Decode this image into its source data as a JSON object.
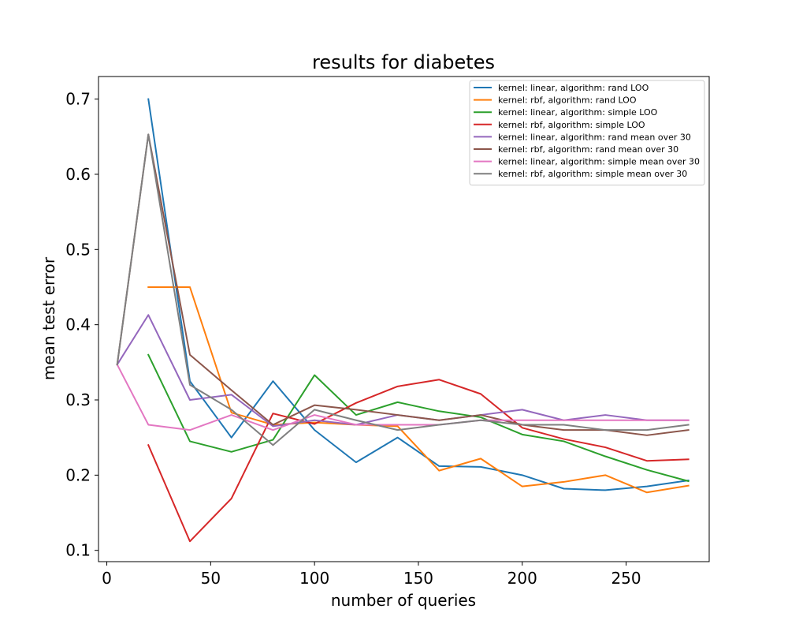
{
  "chart_data": {
    "type": "line",
    "title": "results for diabetes",
    "xlabel": "number of queries",
    "ylabel": "mean test error",
    "xlim": [
      -4,
      290
    ],
    "ylim": [
      0.085,
      0.73
    ],
    "xticks": [
      0,
      50,
      100,
      150,
      200,
      250
    ],
    "yticks": [
      0.1,
      0.2,
      0.3,
      0.4,
      0.5,
      0.6,
      0.7
    ],
    "xtick_labels": [
      "0",
      "50",
      "100",
      "150",
      "200",
      "250"
    ],
    "ytick_labels": [
      "0.1",
      "0.2",
      "0.3",
      "0.4",
      "0.5",
      "0.6",
      "0.7"
    ],
    "grid": false,
    "legend_position": "top-right",
    "series": [
      {
        "name": "kernel: linear, algorithm: rand LOO",
        "color": "#1f77b4",
        "x": [
          20,
          40,
          60,
          80,
          100,
          120,
          140,
          160,
          180,
          200,
          220,
          240,
          260,
          280
        ],
        "y": [
          0.7,
          0.325,
          0.25,
          0.325,
          0.26,
          0.217,
          0.25,
          0.212,
          0.211,
          0.2,
          0.182,
          0.18,
          0.185,
          0.193
        ]
      },
      {
        "name": "kernel: rbf, algorithm: rand LOO",
        "color": "#ff7f0e",
        "x": [
          20,
          40,
          60,
          80,
          100,
          120,
          140,
          160,
          180,
          200,
          220,
          240,
          260,
          280
        ],
        "y": [
          0.45,
          0.45,
          0.283,
          0.267,
          0.27,
          0.267,
          0.265,
          0.206,
          0.222,
          0.185,
          0.191,
          0.2,
          0.177,
          0.186
        ]
      },
      {
        "name": "kernel: linear, algorithm: simple LOO",
        "color": "#2ca02c",
        "x": [
          20,
          40,
          60,
          80,
          100,
          120,
          140,
          160,
          180,
          200,
          220,
          240,
          260,
          280
        ],
        "y": [
          0.36,
          0.245,
          0.231,
          0.247,
          0.333,
          0.28,
          0.297,
          0.285,
          0.277,
          0.254,
          0.245,
          0.225,
          0.207,
          0.192
        ]
      },
      {
        "name": "kernel: rbf, algorithm: simple LOO",
        "color": "#d62728",
        "x": [
          20,
          40,
          60,
          80,
          100,
          120,
          140,
          160,
          180,
          200,
          220,
          240,
          260,
          280
        ],
        "y": [
          0.24,
          0.112,
          0.169,
          0.282,
          0.268,
          0.296,
          0.318,
          0.327,
          0.308,
          0.263,
          0.248,
          0.237,
          0.219,
          0.221
        ]
      },
      {
        "name": "kernel: linear, algorithm: rand mean over 30",
        "color": "#9467bd",
        "x": [
          5,
          20,
          40,
          60,
          80,
          100,
          120,
          140,
          160,
          180,
          200,
          220,
          240,
          260,
          280
        ],
        "y": [
          0.347,
          0.413,
          0.3,
          0.307,
          0.265,
          0.273,
          0.267,
          0.28,
          0.273,
          0.28,
          0.287,
          0.273,
          0.28,
          0.273,
          0.273
        ]
      },
      {
        "name": "kernel: rbf, algorithm: rand mean over 30",
        "color": "#8c564b",
        "x": [
          5,
          20,
          40,
          60,
          80,
          100,
          120,
          140,
          160,
          180,
          200,
          220,
          240,
          260,
          280
        ],
        "y": [
          0.347,
          0.653,
          0.36,
          0.313,
          0.267,
          0.293,
          0.287,
          0.28,
          0.273,
          0.28,
          0.267,
          0.26,
          0.26,
          0.253,
          0.26
        ]
      },
      {
        "name": "kernel: linear, algorithm: simple mean over 30",
        "color": "#e377c2",
        "x": [
          5,
          20,
          40,
          60,
          80,
          100,
          120,
          140,
          160,
          180,
          200,
          220,
          240,
          260,
          280
        ],
        "y": [
          0.347,
          0.267,
          0.26,
          0.28,
          0.26,
          0.28,
          0.267,
          0.267,
          0.267,
          0.273,
          0.273,
          0.273,
          0.273,
          0.273,
          0.273
        ]
      },
      {
        "name": "kernel: rbf, algorithm: simple mean over 30",
        "color": "#7f7f7f",
        "x": [
          5,
          20,
          40,
          60,
          80,
          100,
          120,
          140,
          160,
          180,
          200,
          220,
          240,
          260,
          280
        ],
        "y": [
          0.347,
          0.653,
          0.32,
          0.287,
          0.24,
          0.287,
          0.273,
          0.26,
          0.267,
          0.273,
          0.267,
          0.267,
          0.26,
          0.26,
          0.267
        ]
      }
    ]
  }
}
